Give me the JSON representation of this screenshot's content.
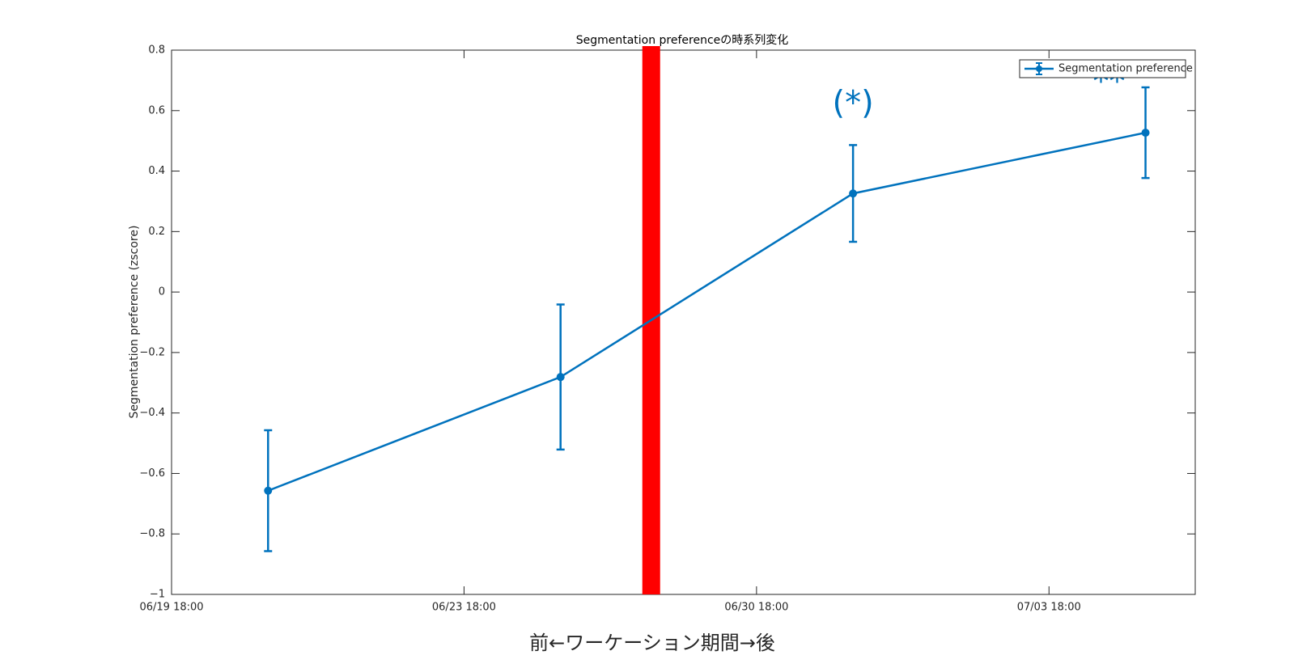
{
  "chart_data": {
    "type": "errorbar",
    "title": "Segmentation preferenceの時系列変化",
    "ylabel": "Segmentation preference (zscore)",
    "xlabel": "前←ワーケーション期間→後",
    "xlabel_color": "#ff0000",
    "series": [
      {
        "name": "Segmentation preference",
        "color": "#0072bd",
        "x": [
          0.33,
          1.33,
          2.33,
          3.33
        ],
        "values": [
          -0.657,
          -0.281,
          0.326,
          0.527
        ],
        "errors": [
          0.2,
          0.24,
          0.16,
          0.15
        ]
      }
    ],
    "annotations": [
      "(*)",
      "**"
    ],
    "vline": {
      "x": 1.64,
      "color": "#ff0000"
    },
    "xlim": [
      0,
      3.5
    ],
    "xticks": [
      {
        "value": 0,
        "label": "06/19 18:00"
      },
      {
        "value": 1,
        "label": "06/23 18:00"
      },
      {
        "value": 2,
        "label": "06/30 18:00"
      },
      {
        "value": 3,
        "label": "07/03 18:00"
      }
    ],
    "ylim": [
      -1,
      0.8
    ],
    "yticks": [
      {
        "value": -1,
        "label": "−1"
      },
      {
        "value": -0.8,
        "label": "−0.8"
      },
      {
        "value": -0.6,
        "label": "−0.6"
      },
      {
        "value": -0.4,
        "label": "−0.4"
      },
      {
        "value": -0.2,
        "label": "−0.2"
      },
      0,
      0.2,
      0.4,
      0.6,
      0.8
    ],
    "grid": false,
    "legend": "upper right"
  }
}
